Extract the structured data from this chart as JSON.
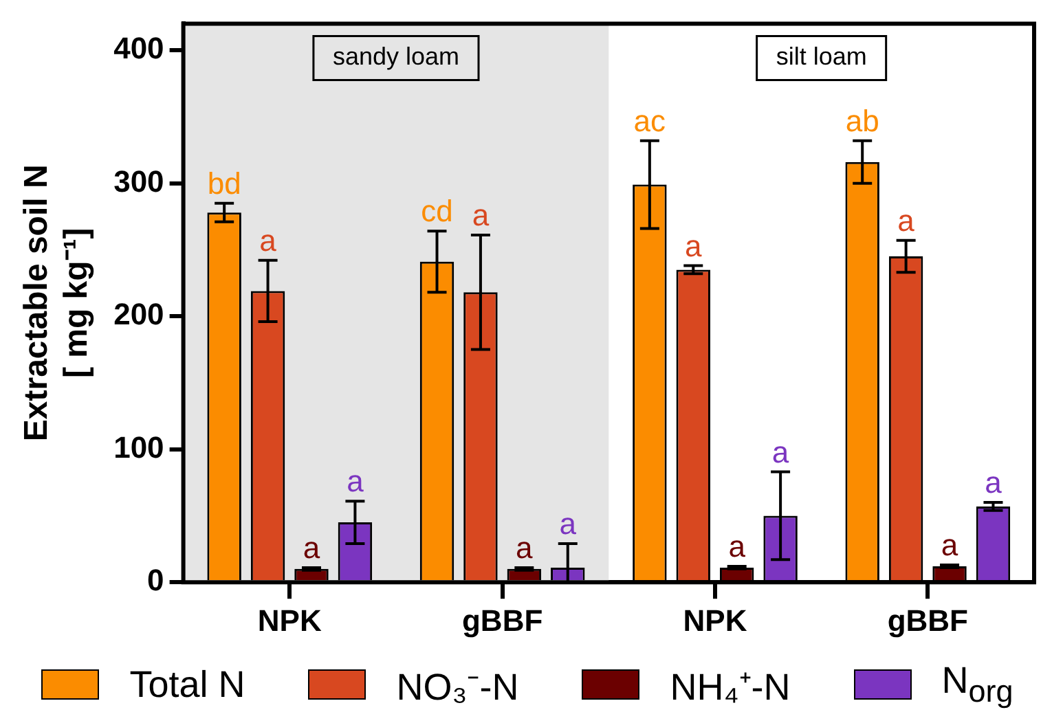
{
  "chart_data": {
    "type": "bar",
    "ylabel": "Extractable soil N\n[ mg kg⁻¹]",
    "categories": [
      "NPK",
      "gBBF",
      "NPK",
      "gBBF"
    ],
    "series": [
      {
        "name": "Total N",
        "color": "#fb8c00",
        "values": [
          278,
          241,
          299,
          316
        ],
        "errors": [
          7,
          23,
          33,
          16
        ],
        "value_labels": [
          "bd",
          "cd",
          "ac",
          "ab"
        ]
      },
      {
        "name": "NO₃⁻-N",
        "color": "#d84820",
        "values": [
          219,
          218,
          235,
          245
        ],
        "errors": [
          23,
          43,
          3,
          12
        ],
        "value_labels": [
          "a",
          "a",
          "a",
          "a"
        ]
      },
      {
        "name": "NH₄⁺-N",
        "color": "#6b0000",
        "values": [
          10,
          10,
          11,
          12
        ],
        "errors": [
          1,
          1,
          1,
          1
        ],
        "value_labels": [
          "a",
          "a",
          "a",
          "a"
        ]
      },
      {
        "name": "N$_{org}$",
        "color": "#7b35c0",
        "values": [
          45,
          11,
          50,
          57
        ],
        "errors": [
          16,
          [
            0,
            29
          ],
          33,
          3
        ],
        "value_labels": [
          "a",
          "a",
          "a",
          "a"
        ]
      }
    ],
    "ylim": [
      0,
      420
    ],
    "yticks": [
      0,
      100,
      200,
      300,
      400
    ],
    "bands": [
      {
        "axis": "x",
        "from": "NPK",
        "to": "gBBF",
        "label": "sandy loam",
        "color": "#e5e5e5"
      }
    ],
    "annotations": [
      "silt loam"
    ],
    "grid": false,
    "legend": "bottom"
  }
}
